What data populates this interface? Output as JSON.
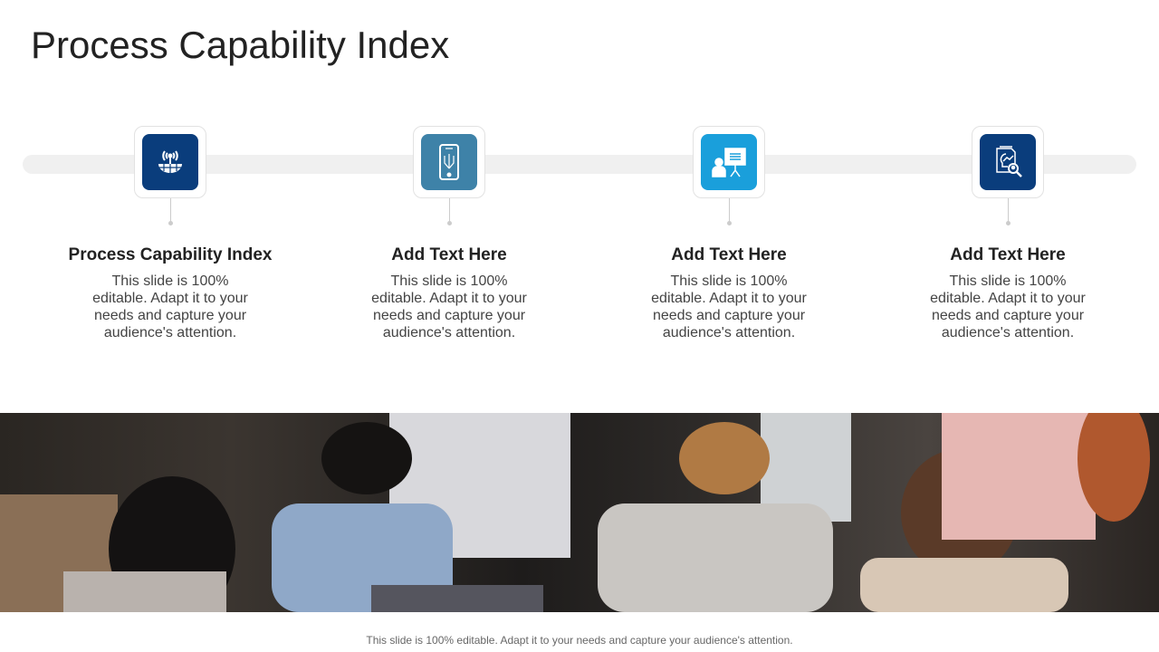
{
  "title": "Process Capability Index",
  "colors": {
    "navy": "#0a3d7c",
    "steel": "#3e82a8",
    "sky": "#1a9fdb"
  },
  "steps": [
    {
      "heading": "Process Capability Index",
      "body": "This slide is 100% editable. Adapt it to your needs and capture your audience's attention.",
      "icon": "antenna-globe-icon",
      "color": "#0a3d7c"
    },
    {
      "heading": "Add Text Here",
      "body": "This slide is 100% editable. Adapt it to your needs and capture your audience's attention.",
      "icon": "smartphone-circuit-icon",
      "color": "#3e82a8"
    },
    {
      "heading": "Add Text Here",
      "body": "This slide is 100% editable. Adapt it to your needs and capture your audience's attention.",
      "icon": "presenter-board-icon",
      "color": "#1a9fdb"
    },
    {
      "heading": "Add Text Here",
      "body": "This slide is 100% editable. Adapt it to your needs and capture your audience's attention.",
      "icon": "idea-document-search-icon",
      "color": "#0a3d7c"
    }
  ],
  "footer": "This slide is 100% editable. Adapt it to your needs and capture your audience's attention."
}
